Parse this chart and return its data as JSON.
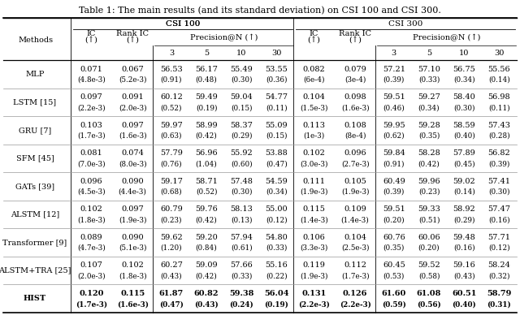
{
  "title": "Table 1: The main results (and its standard deviation) on CSI 100 and CSI 300.",
  "methods": [
    "MLP",
    "LSTM [15]",
    "GRU [7]",
    "SFM [45]",
    "GATs [39]",
    "ALSTM [12]",
    "Transformer [9]",
    "ALSTM+TRA [25]",
    "HIST"
  ],
  "csi100": {
    "IC": [
      "0.071",
      "0.097",
      "0.103",
      "0.081",
      "0.096",
      "0.102",
      "0.089",
      "0.107",
      "0.120"
    ],
    "IC_std": [
      "(4.8e-3)",
      "(2.2e-3)",
      "(1.7e-3)",
      "(7.0e-3)",
      "(4.5e-3)",
      "(1.8e-3)",
      "(4.7e-3)",
      "(2.0e-3)",
      "(1.7e-3)"
    ],
    "RankIC": [
      "0.067",
      "0.091",
      "0.097",
      "0.074",
      "0.090",
      "0.097",
      "0.090",
      "0.102",
      "0.115"
    ],
    "RankIC_std": [
      "(5.2e-3)",
      "(2.0e-3)",
      "(1.6e-3)",
      "(8.0e-3)",
      "(4.4e-3)",
      "(1.9e-3)",
      "(5.1e-3)",
      "(1.8e-3)",
      "(1.6e-3)"
    ],
    "P3": [
      "56.53",
      "60.12",
      "59.97",
      "57.79",
      "59.17",
      "60.79",
      "59.62",
      "60.27",
      "61.87"
    ],
    "P3_std": [
      "(0.91)",
      "(0.52)",
      "(0.63)",
      "(0.76)",
      "(0.68)",
      "(0.23)",
      "(1.20)",
      "(0.43)",
      "(0.47)"
    ],
    "P5": [
      "56.17",
      "59.49",
      "58.99",
      "56.96",
      "58.71",
      "59.76",
      "59.20",
      "59.09",
      "60.82"
    ],
    "P5_std": [
      "(0.48)",
      "(0.19)",
      "(0.42)",
      "(1.04)",
      "(0.52)",
      "(0.42)",
      "(0.84)",
      "(0.42)",
      "(0.43)"
    ],
    "P10": [
      "55.49",
      "59.04",
      "58.37",
      "55.92",
      "57.48",
      "58.13",
      "57.94",
      "57.66",
      "59.38"
    ],
    "P10_std": [
      "(0.30)",
      "(0.15)",
      "(0.29)",
      "(0.60)",
      "(0.30)",
      "(0.13)",
      "(0.61)",
      "(0.33)",
      "(0.24)"
    ],
    "P30": [
      "53.55",
      "54.77",
      "55.09",
      "53.88",
      "54.59",
      "55.00",
      "54.80",
      "55.16",
      "56.04"
    ],
    "P30_std": [
      "(0.36)",
      "(0.11)",
      "(0.15)",
      "(0.47)",
      "(0.34)",
      "(0.12)",
      "(0.33)",
      "(0.22)",
      "(0.19)"
    ]
  },
  "csi300": {
    "IC": [
      "0.082",
      "0.104",
      "0.113",
      "0.102",
      "0.111",
      "0.115",
      "0.106",
      "0.119",
      "0.131"
    ],
    "IC_std": [
      "(6e-4)",
      "(1.5e-3)",
      "(1e-3)",
      "(3.0e-3)",
      "(1.9e-3)",
      "(1.4e-3)",
      "(3.3e-3)",
      "(1.9e-3)",
      "(2.2e-3)"
    ],
    "RankIC": [
      "0.079",
      "0.098",
      "0.108",
      "0.096",
      "0.105",
      "0.109",
      "0.104",
      "0.112",
      "0.126"
    ],
    "RankIC_std": [
      "(3e-4)",
      "(1.6e-3)",
      "(8e-4)",
      "(2.7e-3)",
      "(1.9e-3)",
      "(1.4e-3)",
      "(2.5e-3)",
      "(1.7e-3)",
      "(2.2e-3)"
    ],
    "P3": [
      "57.21",
      "59.51",
      "59.95",
      "59.84",
      "60.49",
      "59.51",
      "60.76",
      "60.45",
      "61.60"
    ],
    "P3_std": [
      "(0.39)",
      "(0.46)",
      "(0.62)",
      "(0.91)",
      "(0.39)",
      "(0.20)",
      "(0.35)",
      "(0.53)",
      "(0.59)"
    ],
    "P5": [
      "57.10",
      "59.27",
      "59.28",
      "58.28",
      "59.96",
      "59.33",
      "60.06",
      "59.52",
      "61.08"
    ],
    "P5_std": [
      "(0.33)",
      "(0.34)",
      "(0.35)",
      "(0.42)",
      "(0.23)",
      "(0.51)",
      "(0.20)",
      "(0.58)",
      "(0.56)"
    ],
    "P10": [
      "56.75",
      "58.40",
      "58.59",
      "57.89",
      "59.02",
      "58.92",
      "59.48",
      "59.16",
      "60.51"
    ],
    "P10_std": [
      "(0.34)",
      "(0.30)",
      "(0.40)",
      "(0.45)",
      "(0.14)",
      "(0.29)",
      "(0.16)",
      "(0.43)",
      "(0.40)"
    ],
    "P30": [
      "55.56",
      "56.98",
      "57.43",
      "56.82",
      "57.41",
      "57.47",
      "57.71",
      "58.24",
      "58.79"
    ],
    "P30_std": [
      "(0.14)",
      "(0.11)",
      "(0.28)",
      "(0.39)",
      "(0.30)",
      "(0.16)",
      "(0.12)",
      "(0.32)",
      "(0.31)"
    ]
  },
  "bold_row": 8,
  "bg_color": "#ffffff",
  "font_size": 7.0,
  "title_font_size": 8.0
}
